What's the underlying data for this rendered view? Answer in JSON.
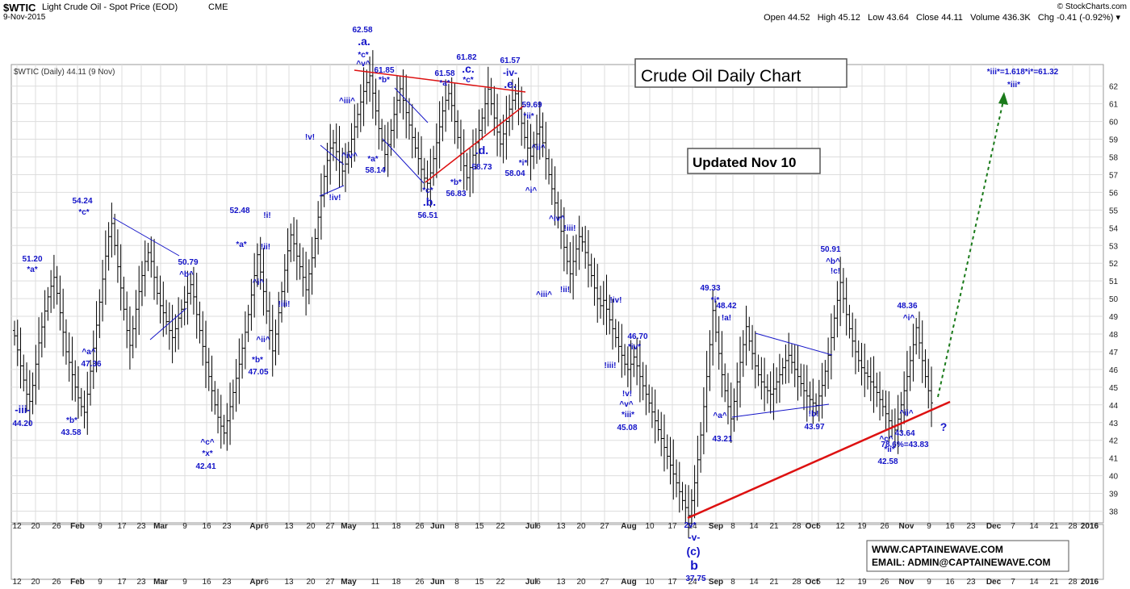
{
  "header": {
    "symbol": "$WTIC",
    "name": "Light Crude Oil - Spot Price (EOD)",
    "exchange": "CME",
    "date": "9-Nov-2015",
    "brand": "© StockCharts.com",
    "quote": "Open 44.52   High 45.12   Low 43.64   Close 44.11   Volume 436.3K   Chg -0.41 (-0.92%) ▾"
  },
  "legend_label": "$WTIC (Daily) 44.11 (9 Nov)",
  "boxes": {
    "title": "Crude Oil Daily Chart",
    "updated": "Updated Nov 10",
    "website": "WWW.CAPTAINEWAVE.COM",
    "email": "EMAIL: ADMIN@CAPTAINEWAVE.COM"
  },
  "chart_data": {
    "type": "ohlc",
    "ylim": [
      37,
      63.5
    ],
    "y_ticks": [
      38,
      39,
      40,
      41,
      42,
      43,
      44,
      45,
      46,
      47,
      48,
      49,
      50,
      51,
      52,
      53,
      54,
      55,
      56,
      57,
      58,
      59,
      60,
      61,
      62
    ],
    "x_tick_labels": [
      "12",
      "20",
      "26",
      "Feb",
      "9",
      "17",
      "23",
      "Mar",
      "9",
      "16",
      "23",
      "Apr",
      "6",
      "13",
      "20",
      "27",
      "May",
      "11",
      "18",
      "26",
      "Jun",
      "8",
      "15",
      "22",
      "Jul",
      "6",
      "13",
      "20",
      "27",
      "Aug",
      "10",
      "17",
      "24",
      "Sep",
      "8",
      "14",
      "21",
      "28",
      "Oct",
      "5",
      "12",
      "19",
      "26",
      "Nov",
      "9",
      "16",
      "23",
      "Dec",
      "7",
      "14",
      "21",
      "28",
      "2016"
    ],
    "bar_close_series": [
      47.9,
      47.1,
      46.2,
      45.4,
      44.6,
      44.2,
      45.1,
      46.3,
      47.5,
      48.4,
      49.3,
      50.1,
      50.7,
      51.2,
      50.3,
      49.2,
      48.1,
      47.0,
      46.4,
      45.7,
      45.0,
      44.4,
      43.9,
      43.58,
      44.6,
      45.9,
      47.2,
      48.5,
      49.8,
      51.1,
      52.4,
      53.5,
      54.24,
      53.0,
      51.8,
      50.6,
      49.4,
      48.2,
      47.36,
      48.3,
      49.4,
      50.4,
      51.3,
      52.1,
      52.6,
      52.1,
      51.2,
      50.3,
      49.6,
      49.2,
      48.7,
      48.2,
      47.8,
      48.3,
      48.9,
      49.4,
      49.8,
      50.3,
      50.79,
      50.1,
      49.1,
      48.2,
      47.3,
      46.4,
      45.6,
      44.8,
      44.0,
      43.3,
      42.8,
      42.41,
      43.1,
      43.9,
      44.7,
      45.5,
      46.3,
      47.2,
      48.1,
      49.1,
      50.2,
      51.3,
      52.48,
      51.5,
      50.4,
      49.3,
      48.2,
      47.05,
      48.0,
      49.2,
      50.4,
      51.6,
      52.7,
      53.6,
      53.1,
      52.4,
      51.8,
      51.2,
      50.5,
      51.4,
      52.3,
      53.4,
      54.6,
      55.8,
      56.9,
      57.8,
      58.5,
      58.8,
      58.3,
      57.7,
      57.2,
      57.6,
      58.3,
      59.0,
      59.7,
      60.4,
      61.1,
      61.7,
      62.2,
      62.58,
      61.6,
      60.6,
      59.6,
      58.9,
      58.14,
      58.7,
      59.5,
      60.4,
      61.2,
      61.85,
      61.2,
      60.5,
      59.8,
      59.1,
      58.5,
      57.9,
      57.3,
      56.8,
      56.51,
      57.1,
      57.9,
      58.8,
      59.7,
      60.6,
      61.2,
      61.58,
      60.9,
      60.0,
      59.1,
      58.2,
      57.5,
      56.83,
      57.4,
      58.1,
      58.8,
      59.5,
      60.2,
      61.0,
      61.82,
      61.0,
      60.2,
      59.4,
      58.73,
      59.3,
      60.0,
      60.7,
      61.2,
      61.57,
      60.7,
      59.9,
      59.1,
      58.5,
      58.04,
      58.7,
      59.3,
      59.69,
      58.8,
      57.9,
      57.0,
      56.2,
      55.4,
      54.6,
      53.8,
      52.9,
      52.1,
      51.4,
      52.1,
      52.8,
      53.5,
      53.2,
      52.6,
      51.9,
      51.3,
      50.6,
      50.0,
      49.6,
      49.9,
      49.4,
      48.8,
      48.3,
      47.8,
      47.3,
      46.8,
      46.3,
      46.0,
      46.3,
      46.7,
      46.2,
      45.6,
      45.08,
      44.6,
      44.1,
      43.6,
      43.1,
      42.6,
      42.1,
      41.6,
      41.1,
      40.6,
      40.1,
      39.6,
      39.1,
      38.6,
      38.2,
      37.75,
      38.6,
      39.6,
      40.9,
      42.3,
      43.9,
      45.6,
      47.4,
      49.33,
      48.1,
      46.9,
      45.7,
      44.8,
      43.9,
      43.21,
      44.2,
      45.3,
      46.4,
      47.4,
      48.42,
      47.6,
      46.9,
      46.2,
      45.7,
      45.3,
      45.0,
      44.8,
      44.6,
      44.9,
      45.3,
      45.7,
      46.1,
      46.5,
      46.8,
      46.4,
      46.0,
      45.6,
      45.2,
      44.8,
      44.5,
      44.3,
      44.1,
      43.97,
      44.5,
      45.1,
      45.9,
      46.8,
      47.8,
      48.9,
      49.9,
      50.91,
      50.0,
      49.1,
      48.3,
      47.6,
      47.0,
      46.5,
      46.1,
      45.8,
      45.6,
      45.3,
      45.0,
      44.7,
      44.3,
      43.9,
      43.5,
      43.1,
      42.8,
      42.58,
      43.2,
      44.0,
      44.8,
      45.6,
      46.5,
      47.4,
      48.36,
      47.5,
      46.5,
      45.6,
      44.8,
      44.11
    ],
    "support_line": {
      "from": [
        "Aug 24",
        37.75
      ],
      "to": [
        "Nov 16",
        44.1
      ]
    },
    "projection": {
      "label": "*iii*=1.618*i*=61.32",
      "target": 61.32
    },
    "annotations": [
      {
        "text": "51.20",
        "color": "blue"
      },
      {
        "text": "*a*",
        "color": "blue"
      },
      {
        "text": "-iii-",
        "color": "blue"
      },
      {
        "text": "44.20",
        "color": "blue"
      },
      {
        "text": "54.24",
        "color": "blue"
      },
      {
        "text": "*c*",
        "color": "blue"
      },
      {
        "text": "^a^",
        "color": "blue"
      },
      {
        "text": "47.36",
        "color": "blue"
      },
      {
        "text": "*b*",
        "color": "blue"
      },
      {
        "text": "43.58",
        "color": "blue"
      },
      {
        "text": "50.79",
        "color": "blue"
      },
      {
        "text": "^b^",
        "color": "blue"
      },
      {
        "text": "^c^",
        "color": "blue"
      },
      {
        "text": "*x*",
        "color": "blue"
      },
      {
        "text": "42.41",
        "color": "blue"
      },
      {
        "text": "52.48",
        "color": "blue"
      },
      {
        "text": "*a*",
        "color": "blue"
      },
      {
        "text": "^i^",
        "color": "blue"
      },
      {
        "text": "^ii^",
        "color": "blue"
      },
      {
        "text": "*b*",
        "color": "blue"
      },
      {
        "text": "47.05",
        "color": "blue"
      },
      {
        "text": "!i!",
        "color": "blue"
      },
      {
        "text": "!ii!",
        "color": "blue"
      },
      {
        "text": "!iii!",
        "color": "blue"
      },
      {
        "text": "!iv!",
        "color": "blue"
      },
      {
        "text": "!v!",
        "color": "blue"
      },
      {
        "text": "^iii^",
        "color": "blue"
      },
      {
        "text": "^iv^",
        "color": "blue"
      },
      {
        "text": "62.58",
        "color": "blue"
      },
      {
        "text": ".a.",
        "color": "blue"
      },
      {
        "text": "*c*",
        "color": "blue"
      },
      {
        "text": "^v^",
        "color": "blue"
      },
      {
        "text": "61.85",
        "color": "blue"
      },
      {
        "text": "*b*",
        "color": "blue"
      },
      {
        "text": "*a*",
        "color": "blue"
      },
      {
        "text": "58.14",
        "color": "blue"
      },
      {
        "text": "*c*",
        "color": "blue"
      },
      {
        "text": ".b.",
        "color": "blue"
      },
      {
        "text": "56.51",
        "color": "blue"
      },
      {
        "text": "61.58",
        "color": "blue"
      },
      {
        "text": "*a*",
        "color": "blue"
      },
      {
        "text": "61.82",
        "color": "blue"
      },
      {
        "text": ".c.",
        "color": "blue"
      },
      {
        "text": "*c*",
        "color": "blue"
      },
      {
        "text": "*b*",
        "color": "blue"
      },
      {
        "text": "56.83",
        "color": "blue"
      },
      {
        "text": ".d.",
        "color": "blue"
      },
      {
        "text": "58.73",
        "color": "blue"
      },
      {
        "text": "61.57",
        "color": "blue"
      },
      {
        "text": "-iv-",
        "color": "blue"
      },
      {
        "text": ".e.",
        "color": "blue"
      },
      {
        "text": "59.69",
        "color": "blue"
      },
      {
        "text": "*ii*",
        "color": "blue"
      },
      {
        "text": "*i*",
        "color": "blue"
      },
      {
        "text": "58.04",
        "color": "blue"
      },
      {
        "text": "^ii^",
        "color": "blue"
      },
      {
        "text": "^i^",
        "color": "blue"
      },
      {
        "text": "^iv^",
        "color": "blue"
      },
      {
        "text": "!iii!",
        "color": "blue"
      },
      {
        "text": "^iii^",
        "color": "blue"
      },
      {
        "text": "!ii!",
        "color": "blue"
      },
      {
        "text": "!iv!",
        "color": "blue"
      },
      {
        "text": "46.70",
        "color": "blue"
      },
      {
        "text": "*iv*",
        "color": "blue"
      },
      {
        "text": "!iii!",
        "color": "blue"
      },
      {
        "text": "!v!",
        "color": "blue"
      },
      {
        "text": "^v^",
        "color": "blue"
      },
      {
        "text": "*iii*",
        "color": "blue"
      },
      {
        "text": "45.08",
        "color": "blue"
      },
      {
        "text": "2v*",
        "color": "blue"
      },
      {
        "text": "-v-",
        "color": "blue"
      },
      {
        "text": "(c)",
        "color": "blue"
      },
      {
        "text": "b",
        "color": "blue"
      },
      {
        "text": "37.75",
        "color": "blue"
      },
      {
        "text": "49.33",
        "color": "blue"
      },
      {
        "text": "*i*",
        "color": "blue"
      },
      {
        "text": "48.42",
        "color": "blue"
      },
      {
        "text": "!a!",
        "color": "blue"
      },
      {
        "text": "^a^",
        "color": "blue"
      },
      {
        "text": "43.21",
        "color": "blue"
      },
      {
        "text": "!b!",
        "color": "blue"
      },
      {
        "text": "43.97",
        "color": "blue"
      },
      {
        "text": "50.91",
        "color": "blue"
      },
      {
        "text": "^b^",
        "color": "blue"
      },
      {
        "text": "!c!",
        "color": "blue"
      },
      {
        "text": "^c^",
        "color": "blue"
      },
      {
        "text": "*ii*",
        "color": "blue"
      },
      {
        "text": "42.58",
        "color": "blue"
      },
      {
        "text": "48.36",
        "color": "blue"
      },
      {
        "text": "^i^",
        "color": "blue"
      },
      {
        "text": "^ii^",
        "color": "blue"
      },
      {
        "text": "43.64",
        "color": "blue"
      },
      {
        "text": "?",
        "color": "blue"
      },
      {
        "text": "78.6%=43.83",
        "color": "blue"
      },
      {
        "text": "*iii*",
        "color": "blue"
      }
    ]
  },
  "colors": {
    "price": "#000000",
    "annotation": "#1414c8",
    "trend": "#dd1111",
    "projection": "#1a7a1a",
    "grid": "#dddddd"
  }
}
